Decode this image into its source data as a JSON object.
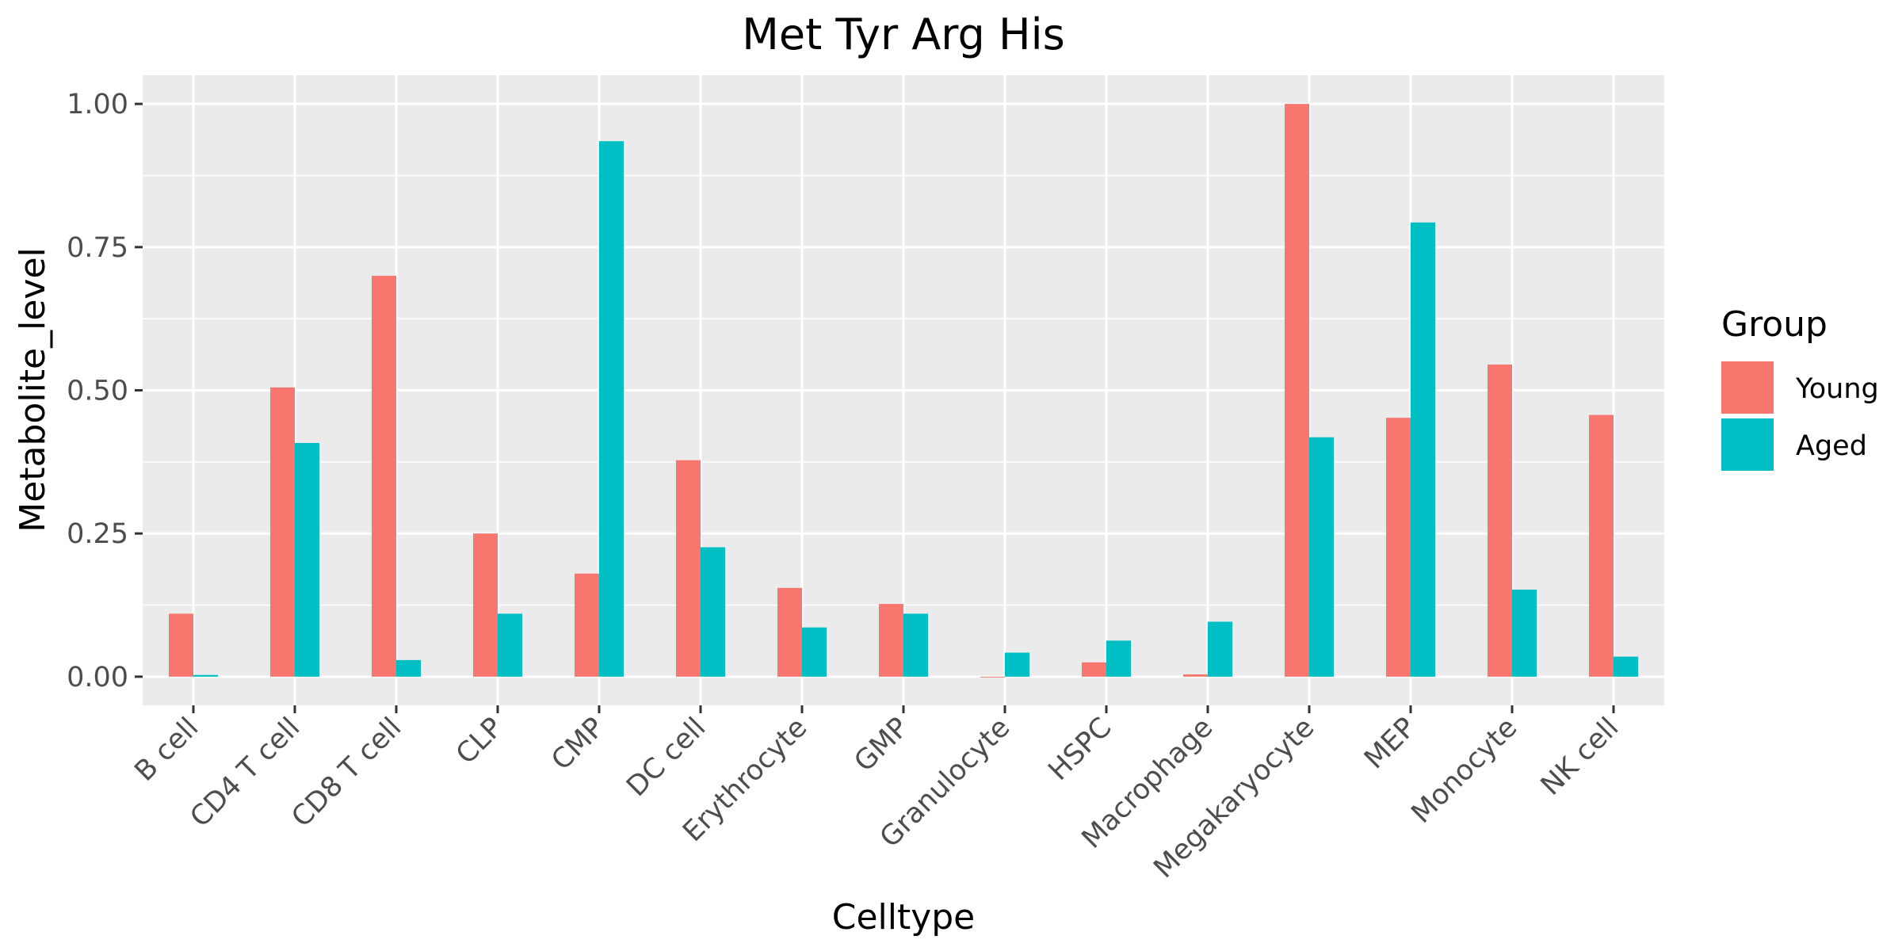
{
  "chart_data": {
    "type": "bar",
    "title": "Met Tyr Arg His",
    "xlabel": "Celltype",
    "ylabel": "Metabolite_level",
    "categories": [
      "B cell",
      "CD4 T cell",
      "CD8 T cell",
      "CLP",
      "CMP",
      "DC cell",
      "Erythrocyte",
      "GMP",
      "Granulocyte",
      "HSPC",
      "Macrophage",
      "Megakaryocyte",
      "MEP",
      "Monocyte",
      "NK cell"
    ],
    "series": [
      {
        "name": "Young",
        "color": "#F8766D",
        "values": [
          0.11,
          0.505,
          0.7,
          0.25,
          0.18,
          0.378,
          0.155,
          0.127,
          0.0,
          0.025,
          0.004,
          1.0,
          0.452,
          0.545,
          0.457
        ]
      },
      {
        "name": "Aged",
        "color": "#00BFC4",
        "values": [
          0.003,
          0.408,
          0.029,
          0.11,
          0.935,
          0.226,
          0.086,
          0.11,
          0.042,
          0.063,
          0.096,
          0.418,
          0.793,
          0.152,
          0.035
        ]
      }
    ],
    "y_ticks": [
      "0.00",
      "0.25",
      "0.50",
      "0.75",
      "1.00"
    ],
    "y_tick_values": [
      0,
      0.25,
      0.5,
      0.75,
      1.0
    ],
    "ylim": [
      -0.05,
      1.05
    ],
    "legend": {
      "title": "Group",
      "position": "right"
    },
    "grid": true,
    "panel_background": "#EBEBEB"
  }
}
